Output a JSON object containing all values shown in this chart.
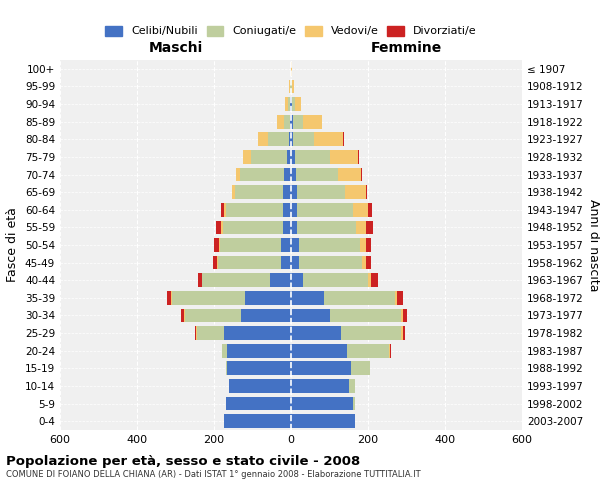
{
  "age_groups": [
    "0-4",
    "5-9",
    "10-14",
    "15-19",
    "20-24",
    "25-29",
    "30-34",
    "35-39",
    "40-44",
    "45-49",
    "50-54",
    "55-59",
    "60-64",
    "65-69",
    "70-74",
    "75-79",
    "80-84",
    "85-89",
    "90-94",
    "95-99",
    "100+"
  ],
  "birth_years": [
    "2003-2007",
    "1998-2002",
    "1993-1997",
    "1988-1992",
    "1983-1987",
    "1978-1982",
    "1973-1977",
    "1968-1972",
    "1963-1967",
    "1958-1962",
    "1953-1957",
    "1948-1952",
    "1943-1947",
    "1938-1942",
    "1933-1937",
    "1928-1932",
    "1923-1927",
    "1918-1922",
    "1913-1917",
    "1908-1912",
    "≤ 1907"
  ],
  "maschi": {
    "celibi": [
      175,
      170,
      160,
      165,
      165,
      175,
      130,
      120,
      55,
      25,
      25,
      22,
      20,
      20,
      18,
      10,
      5,
      2,
      2,
      0,
      0
    ],
    "coniugati": [
      0,
      0,
      2,
      5,
      15,
      70,
      145,
      190,
      175,
      165,
      160,
      155,
      150,
      125,
      115,
      95,
      55,
      15,
      5,
      2,
      0
    ],
    "vedovi": [
      0,
      0,
      0,
      0,
      0,
      2,
      2,
      2,
      2,
      2,
      3,
      5,
      5,
      8,
      10,
      20,
      25,
      20,
      8,
      3,
      0
    ],
    "divorziati": [
      0,
      0,
      0,
      0,
      0,
      3,
      8,
      10,
      10,
      10,
      12,
      12,
      8,
      0,
      0,
      0,
      0,
      0,
      0,
      0,
      0
    ]
  },
  "femmine": {
    "nubili": [
      165,
      160,
      150,
      155,
      145,
      130,
      100,
      85,
      30,
      20,
      20,
      15,
      15,
      15,
      12,
      10,
      5,
      5,
      2,
      0,
      0
    ],
    "coniugate": [
      0,
      5,
      15,
      50,
      110,
      155,
      185,
      185,
      170,
      165,
      160,
      155,
      145,
      125,
      110,
      90,
      55,
      25,
      8,
      2,
      0
    ],
    "vedove": [
      0,
      0,
      0,
      0,
      2,
      5,
      5,
      5,
      8,
      10,
      15,
      25,
      40,
      55,
      60,
      75,
      75,
      50,
      15,
      5,
      2
    ],
    "divorziate": [
      0,
      0,
      0,
      0,
      2,
      5,
      12,
      15,
      18,
      12,
      12,
      18,
      10,
      2,
      2,
      2,
      2,
      0,
      0,
      0,
      0
    ]
  },
  "colors": {
    "celibi_nubili": "#4472C4",
    "coniugati": "#BFCE9E",
    "vedovi": "#F5C76E",
    "divorziati": "#CC2222"
  },
  "xlim": 600,
  "title": "Popolazione per età, sesso e stato civile - 2008",
  "subtitle": "COMUNE DI FOIANO DELLA CHIANA (AR) - Dati ISTAT 1° gennaio 2008 - Elaborazione TUTTITALIA.IT",
  "ylabel": "Fasce di età",
  "ylabel2": "Anni di nascita",
  "xlabel_maschi": "Maschi",
  "xlabel_femmine": "Femmine",
  "bg_color": "#f0f0f0",
  "grid_color": "#cccccc"
}
